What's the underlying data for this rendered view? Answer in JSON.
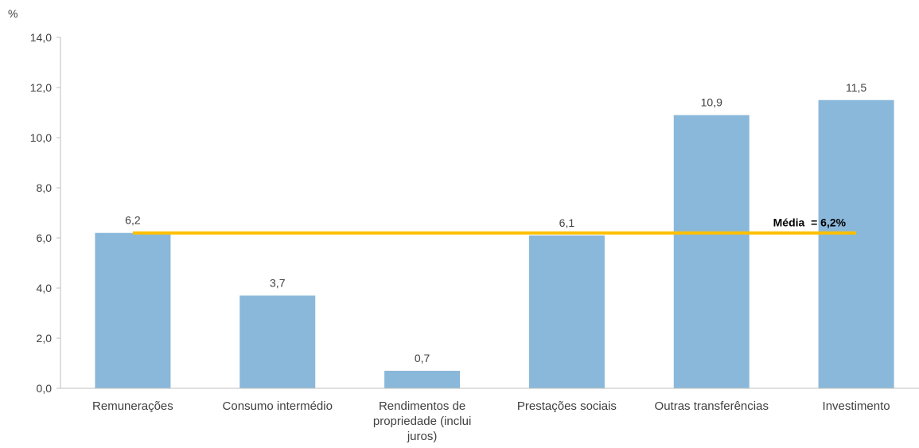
{
  "chart_data": {
    "type": "bar",
    "unit_label": "%",
    "categories": [
      [
        "Remunerações"
      ],
      [
        "Consumo intermédio"
      ],
      [
        "Rendimentos de",
        "propriedade (inclui",
        "juros)"
      ],
      [
        "Prestações sociais"
      ],
      [
        "Outras transferências"
      ],
      [
        "Investimento"
      ]
    ],
    "values": [
      6.2,
      3.7,
      0.7,
      6.1,
      10.9,
      11.5
    ],
    "data_labels": [
      "6,2",
      "3,7",
      "0,7",
      "6,1",
      "10,9",
      "11,5"
    ],
    "ylim": [
      0,
      14
    ],
    "yticks": [
      0,
      2,
      4,
      6,
      8,
      10,
      12,
      14
    ],
    "ytick_labels": [
      "0,0",
      "2,0",
      "4,0",
      "6,0",
      "8,0",
      "10,0",
      "12,0",
      "14,0"
    ],
    "reference_line": {
      "value": 6.2,
      "label": "Média  = 6,2%"
    },
    "grid": false,
    "legend": "none",
    "colors": {
      "bar": "#8AB8DA",
      "reference_line": "#FFC000",
      "axis": "#BFBFBF",
      "text": "#404040"
    }
  }
}
